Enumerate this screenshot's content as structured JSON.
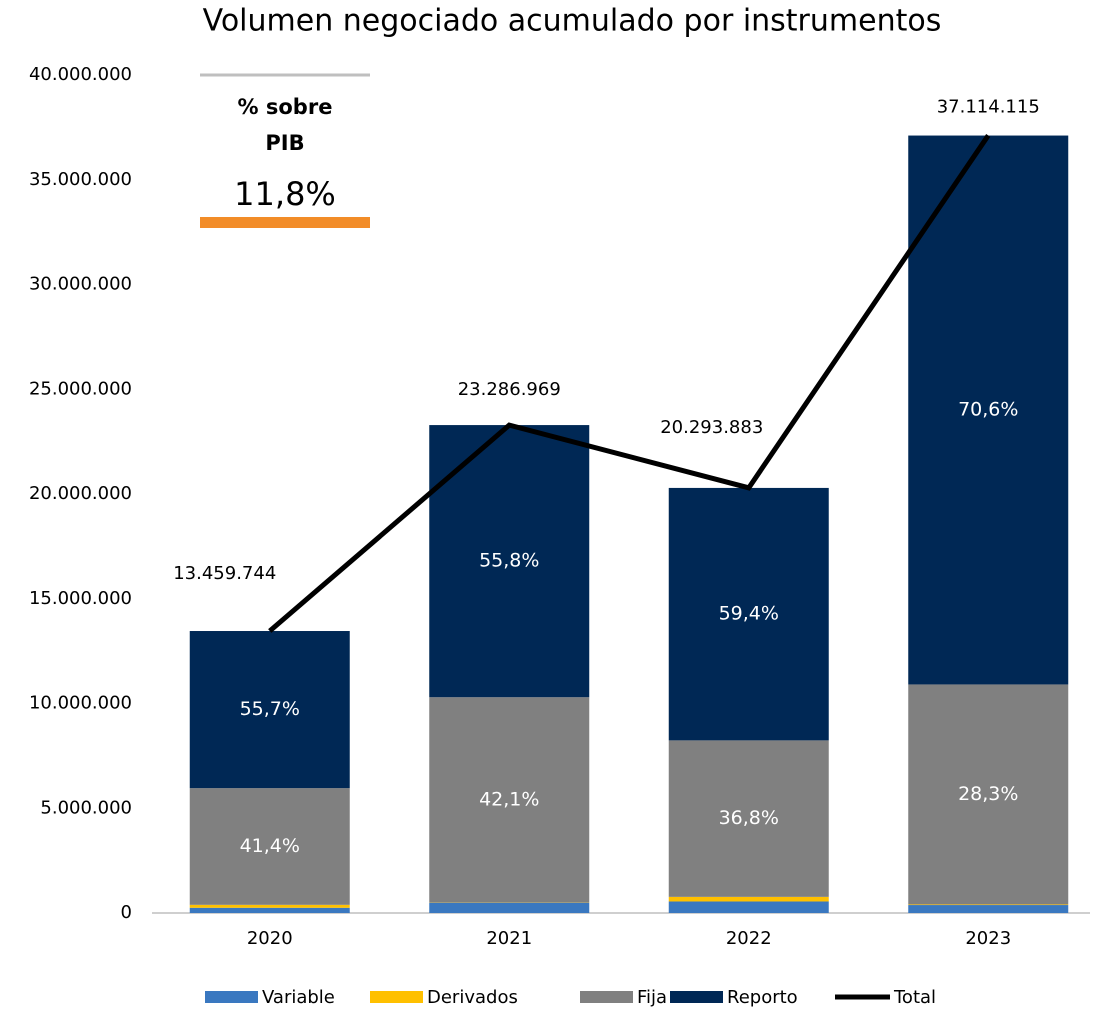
{
  "chart_data": {
    "type": "stacked_bar_line",
    "title": "Volumen negociado acumulado por instrumentos",
    "categories": [
      "2020",
      "2021",
      "2022",
      "2023"
    ],
    "series": [
      {
        "name": "Variable",
        "color": "#3a78c0",
        "values": [
          250000,
          490000,
          550000,
          380000
        ]
      },
      {
        "name": "Derivados",
        "color": "#ffc000",
        "values": [
          140000,
          10000,
          220000,
          30000
        ]
      },
      {
        "name": "Fija",
        "color": "#808080",
        "values": [
          5570000,
          9800000,
          7470000,
          10500000
        ],
        "percent_labels": [
          "41,4%",
          "42,1%",
          "36,8%",
          "28,3%"
        ]
      },
      {
        "name": "Reporto",
        "color": "#002855",
        "values": [
          7500000,
          12990000,
          12050000,
          26200000
        ],
        "percent_labels": [
          "55,7%",
          "55,8%",
          "59,4%",
          "70,6%"
        ]
      },
      {
        "name": "Total",
        "color": "#000000",
        "kind": "line",
        "values": [
          13459744,
          23286969,
          20293883,
          37114115
        ],
        "value_labels": [
          "13.459.744",
          "23.286.969",
          "20.293.883",
          "37.114.115"
        ]
      }
    ],
    "ylim": [
      0,
      40000000
    ],
    "yticks": [
      0,
      {
        "value": 5000000,
        "label": "5.000.000"
      },
      {
        "value": 10000000,
        "label": "10.000.000"
      },
      {
        "value": 15000000,
        "label": "15.000.000"
      },
      {
        "value": 20000000,
        "label": "20.000.000"
      },
      {
        "value": 25000000,
        "label": "25.000.000"
      },
      {
        "value": 30000000,
        "label": "30.000.000"
      },
      {
        "value": 35000000,
        "label": "35.000.000"
      },
      {
        "value": 40000000,
        "label": "40.000.000"
      }
    ],
    "legend": "bottom",
    "pib_box": {
      "label": [
        "% sobre",
        "PIB"
      ],
      "value": "11,8%"
    }
  }
}
